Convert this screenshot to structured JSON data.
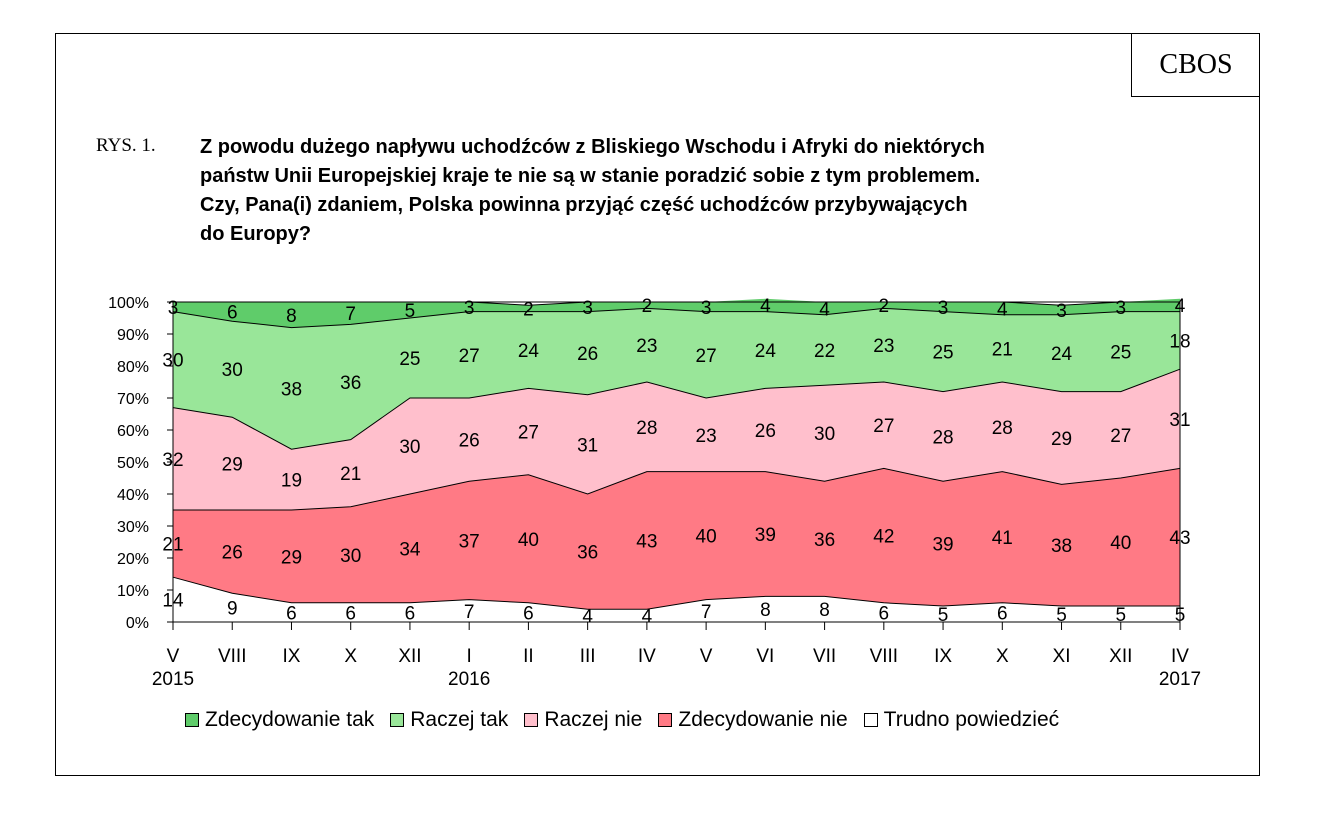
{
  "brand": "CBOS",
  "figure_label": "RYS. 1.",
  "title_lines": [
    "Z powodu dużego napływu uchodźców z Bliskiego Wschodu i Afryki do niektórych",
    "państw Unii Europejskiej kraje te nie są w stanie poradzić sobie z tym problemem.",
    "Czy, Pana(i) zdaniem, Polska powinna przyjąć część uchodźców przybywających",
    "do Europy?"
  ],
  "chart_data": {
    "type": "area",
    "stacked": true,
    "percent": true,
    "categories": [
      "V",
      "VIII",
      "IX",
      "X",
      "XII",
      "I",
      "II",
      "III",
      "IV",
      "V",
      "VI",
      "VII",
      "VIII",
      "IX",
      "X",
      "XI",
      "XII",
      "IV"
    ],
    "year_labels": [
      {
        "index": 0,
        "label": "2015"
      },
      {
        "index": 5,
        "label": "2016"
      },
      {
        "index": 17,
        "label": "2017"
      }
    ],
    "yticks": [
      "0%",
      "10%",
      "20%",
      "30%",
      "40%",
      "50%",
      "60%",
      "70%",
      "80%",
      "90%",
      "100%"
    ],
    "ylim": [
      0,
      100
    ],
    "series": [
      {
        "name": "Trudno powiedzieć",
        "color": "#ffffff",
        "values": [
          14,
          9,
          6,
          6,
          6,
          7,
          6,
          4,
          4,
          7,
          8,
          8,
          6,
          5,
          6,
          5,
          5,
          5
        ]
      },
      {
        "name": "Zdecydowanie nie",
        "color": "#ff7a85",
        "values": [
          21,
          26,
          29,
          30,
          34,
          37,
          40,
          36,
          43,
          40,
          39,
          36,
          42,
          39,
          41,
          38,
          40,
          43
        ]
      },
      {
        "name": "Raczej nie",
        "color": "#ffbfcc",
        "values": [
          32,
          29,
          19,
          21,
          30,
          26,
          27,
          31,
          28,
          23,
          26,
          30,
          27,
          28,
          28,
          29,
          27,
          31
        ]
      },
      {
        "name": "Raczej tak",
        "color": "#99e699",
        "values": [
          30,
          30,
          38,
          36,
          25,
          27,
          24,
          26,
          23,
          27,
          24,
          22,
          23,
          25,
          21,
          24,
          25,
          18
        ]
      },
      {
        "name": "Zdecydowanie tak",
        "color": "#5fcc6a",
        "values": [
          3,
          6,
          8,
          7,
          5,
          3,
          2,
          3,
          2,
          3,
          4,
          4,
          2,
          3,
          4,
          3,
          3,
          4
        ]
      }
    ],
    "legend_order": [
      "Zdecydowanie tak",
      "Raczej tak",
      "Raczej nie",
      "Zdecydowanie nie",
      "Trudno powiedzieć"
    ],
    "legend_position": "bottom"
  }
}
